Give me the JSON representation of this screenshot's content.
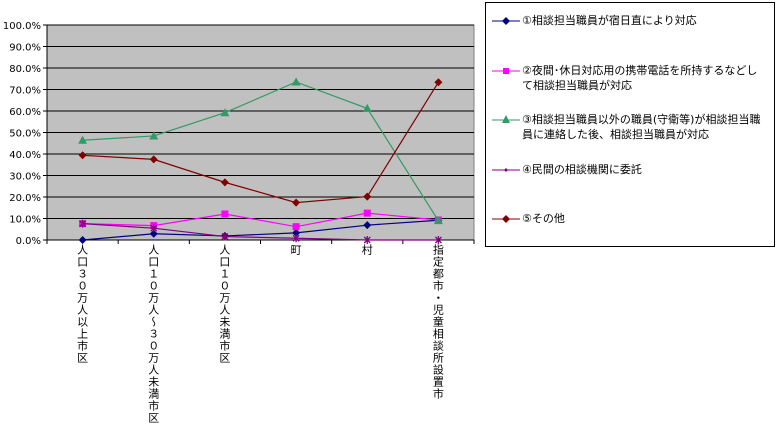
{
  "chart_data": {
    "type": "line",
    "categories": [
      "人口３０万人以上市区",
      "人口１０万人～３０万人未満市区",
      "人口１０万人未満市区",
      "町",
      "村",
      "指定都市・児童相談所設置市"
    ],
    "yticks": [
      "0.0%",
      "10.0%",
      "20.0%",
      "30.0%",
      "40.0%",
      "50.0%",
      "60.0%",
      "70.0%",
      "80.0%",
      "90.0%",
      "100.0%"
    ],
    "ylim": [
      0,
      100
    ],
    "grid": true,
    "plot_background": "#C0C0C0",
    "legend_position": "right",
    "series": [
      {
        "name": "①相談担当職員が宿日直により対応",
        "color": "#000080",
        "marker": "diamond",
        "values": [
          0.0,
          2.9,
          1.9,
          3.3,
          6.9,
          9.2
        ]
      },
      {
        "name": "②夜間･休日対応用の携帯電話を所持するなどして相談担当職員が対応",
        "color": "#FF00FF",
        "marker": "square",
        "values": [
          7.6,
          6.7,
          12.1,
          6.2,
          12.5,
          9.3
        ]
      },
      {
        "name": "③相談担当職員以外の職員(守衛等)が相談担当職員に連絡した後、相談担当職員が対応",
        "color": "#339966",
        "marker": "triangle",
        "values": [
          46.4,
          48.4,
          59.2,
          73.5,
          61.2,
          9.0
        ]
      },
      {
        "name": "④民間の相談機関に委託",
        "color": "#800080",
        "marker": "star",
        "values": [
          7.6,
          5.5,
          1.6,
          0.8,
          0.0,
          0.0
        ]
      },
      {
        "name": "⑤その他",
        "color": "#800000",
        "marker": "diamond",
        "values": [
          39.4,
          37.5,
          26.8,
          17.4,
          20.2,
          73.4
        ]
      }
    ]
  }
}
